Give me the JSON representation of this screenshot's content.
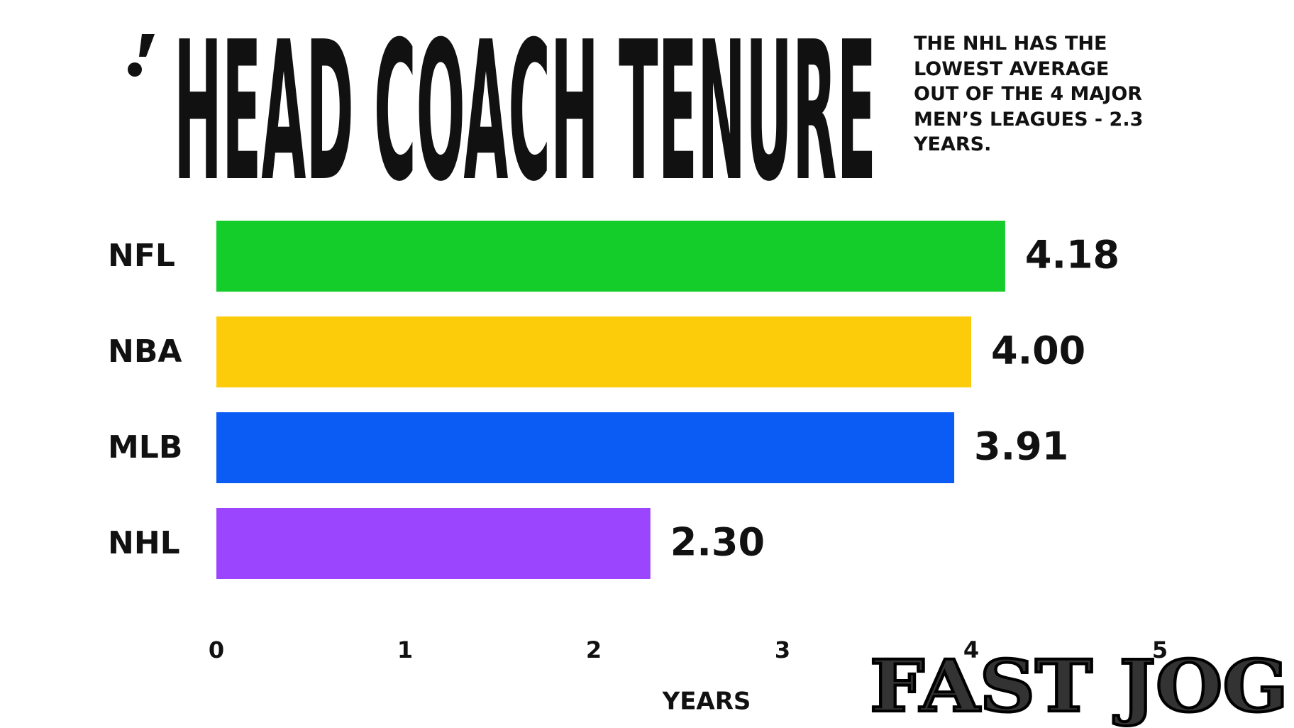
{
  "chart_data": {
    "type": "bar",
    "orientation": "horizontal",
    "title": "HEAD COACH TENURE",
    "annotation": "THE NHL HAS THE LOWEST AVERAGE OUT OF THE 4 MAJOR MEN’S LEAGUES - 2.3 YEARS.",
    "categories": [
      "NFL",
      "NBA",
      "MLB",
      "NHL"
    ],
    "values": [
      4.18,
      4.0,
      3.91,
      2.3
    ],
    "value_labels": [
      "4.18",
      "4.00",
      "3.91",
      "2.30"
    ],
    "colors": [
      "#14cc2a",
      "#fccc0a",
      "#0a5cf5",
      "#9b45ff"
    ],
    "xlim": [
      0,
      5
    ],
    "xticks": [
      0,
      1,
      2,
      3,
      4,
      5
    ],
    "xlabel": "YEARS",
    "grid": false,
    "watermark": "FAST JOG"
  }
}
